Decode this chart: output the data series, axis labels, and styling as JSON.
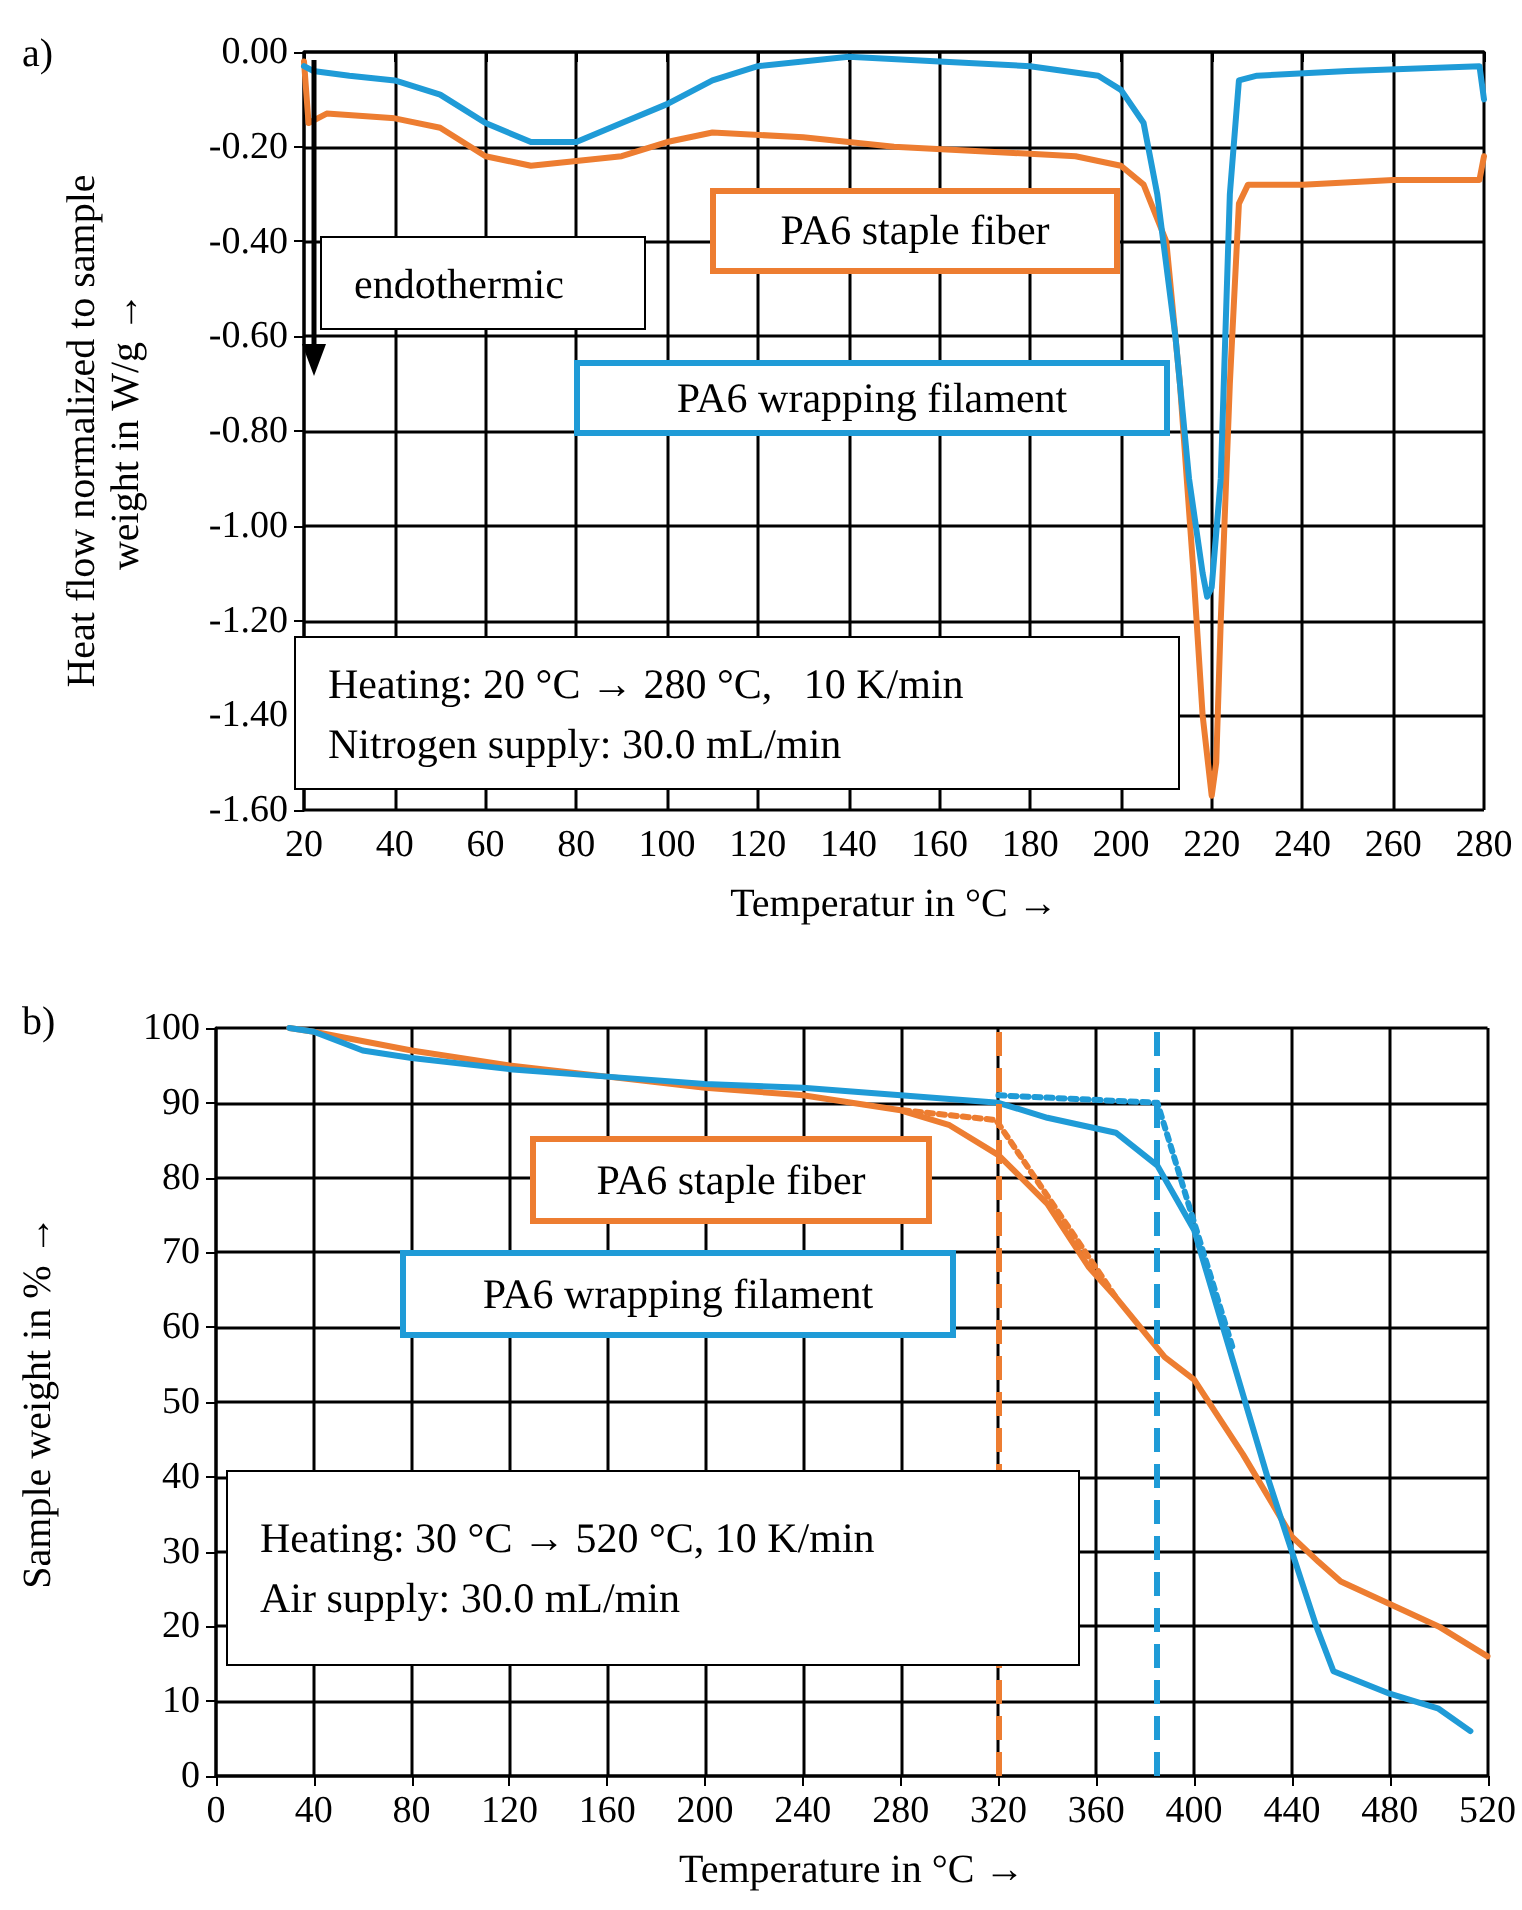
{
  "chart_data": [
    {
      "type": "line",
      "title": "a)",
      "xlabel": "Temperatur in °C →",
      "ylabel": "Heat flow normalized to sample weight in W/g →",
      "xlim": [
        20,
        280
      ],
      "xticks": [
        20,
        40,
        60,
        80,
        100,
        120,
        140,
        160,
        180,
        200,
        220,
        240,
        260,
        280
      ],
      "ylim": [
        -1.6,
        0
      ],
      "yticks": [
        {
          "value": 0,
          "label": "0.00"
        },
        {
          "value": -0.2,
          "label": "-0.20"
        },
        {
          "value": -0.4,
          "label": "-0.40"
        },
        {
          "value": -0.6,
          "label": "-0.60"
        },
        {
          "value": -0.8,
          "label": "-0.80"
        },
        {
          "value": -1,
          "label": "-1.00"
        },
        {
          "value": -1.2,
          "label": "-1.20"
        },
        {
          "value": -1.4,
          "label": "-1.40"
        },
        {
          "value": -1.6,
          "label": "-1.60"
        }
      ],
      "grid": true,
      "marker": "none",
      "line_style": "solid",
      "series": [
        {
          "name": "PA6 staple fiber",
          "color": "#ed7d31",
          "x": [
            20,
            21,
            25,
            40,
            50,
            60,
            70,
            80,
            90,
            100,
            110,
            130,
            150,
            170,
            190,
            200,
            205,
            210,
            213,
            216,
            218,
            220,
            221,
            222,
            224,
            226,
            228,
            240,
            260,
            279,
            280
          ],
          "values": [
            -0.02,
            -0.15,
            -0.13,
            -0.14,
            -0.16,
            -0.22,
            -0.24,
            -0.23,
            -0.22,
            -0.19,
            -0.17,
            -0.18,
            -0.2,
            -0.21,
            -0.22,
            -0.24,
            -0.28,
            -0.4,
            -0.7,
            -1.1,
            -1.4,
            -1.57,
            -1.5,
            -1.2,
            -0.7,
            -0.32,
            -0.28,
            -0.28,
            -0.27,
            -0.27,
            -0.22
          ]
        },
        {
          "name": "PA6 wrapping filament",
          "color": "#1f9bd7",
          "x": [
            20,
            22,
            30,
            40,
            50,
            60,
            70,
            80,
            90,
            100,
            110,
            120,
            140,
            160,
            180,
            195,
            200,
            205,
            208,
            212,
            215,
            218,
            219,
            220,
            222,
            224,
            226,
            230,
            250,
            279,
            280
          ],
          "values": [
            -0.03,
            -0.04,
            -0.05,
            -0.06,
            -0.09,
            -0.15,
            -0.19,
            -0.19,
            -0.15,
            -0.11,
            -0.06,
            -0.03,
            -0.01,
            -0.02,
            -0.03,
            -0.05,
            -0.08,
            -0.15,
            -0.3,
            -0.6,
            -0.9,
            -1.1,
            -1.15,
            -1.13,
            -0.9,
            -0.3,
            -0.06,
            -0.05,
            -0.04,
            -0.03,
            -0.1
          ]
        }
      ],
      "annotations": [
        "endothermic",
        "Heating: 20 °C → 280 °C,   10 K/min",
        "Nitrogen supply: 30.0 mL/min"
      ]
    },
    {
      "type": "line",
      "title": "b)",
      "xlabel": "Temperature in °C →",
      "ylabel": "Sample weight in % →",
      "xlim": [
        0,
        520
      ],
      "xticks": [
        0,
        40,
        80,
        120,
        160,
        200,
        240,
        280,
        320,
        360,
        400,
        440,
        480,
        520
      ],
      "ylim": [
        0,
        100
      ],
      "yticks": [
        0,
        10,
        20,
        30,
        40,
        50,
        60,
        70,
        80,
        90,
        100
      ],
      "grid": true,
      "marker": "none",
      "line_style": "solid",
      "series": [
        {
          "name": "PA6 staple fiber",
          "color": "#ed7d31",
          "x": [
            30,
            40,
            80,
            120,
            160,
            200,
            240,
            260,
            280,
            300,
            320,
            340,
            357,
            368,
            388,
            400,
            420,
            440,
            451,
            460,
            480,
            500,
            520
          ],
          "values": [
            100,
            99.5,
            97,
            95,
            93.5,
            92,
            91,
            90,
            89,
            87,
            83,
            76.5,
            68,
            64,
            56,
            53,
            43,
            32,
            28.6,
            26,
            23,
            20,
            16
          ]
        },
        {
          "name": "PA6 wrapping filament",
          "color": "#1f9bd7",
          "x": [
            30,
            40,
            60,
            80,
            120,
            160,
            200,
            240,
            280,
            320,
            340,
            368,
            385,
            400,
            430,
            440,
            450,
            457,
            480,
            500,
            513
          ],
          "values": [
            100,
            99.5,
            97,
            96,
            94.5,
            93.5,
            92.5,
            92,
            91,
            90,
            88,
            86,
            81.6,
            73,
            40,
            30,
            20,
            14,
            11,
            9,
            6
          ]
        },
        {
          "type": "line",
          "color": "#ed7d31",
          "line_style": "dotted",
          "x": [
            281,
            319,
            368
          ],
          "values": [
            89,
            87.7,
            64
          ]
        },
        {
          "type": "line",
          "color": "#1f9bd7",
          "line_style": "dotted",
          "x": [
            320,
            385,
            416
          ],
          "values": [
            91,
            90,
            57
          ]
        }
      ],
      "ref_lines": [
        {
          "axis": "x",
          "value": 320,
          "color": "#ed7d31",
          "line_style": "dashed"
        },
        {
          "axis": "x",
          "value": 385,
          "color": "#1f9bd7",
          "line_style": "dashed"
        }
      ],
      "annotations": [
        "Heating: 30 °C → 520 °C, 10 K/min",
        "Air supply: 30.0 mL/min"
      ]
    }
  ]
}
